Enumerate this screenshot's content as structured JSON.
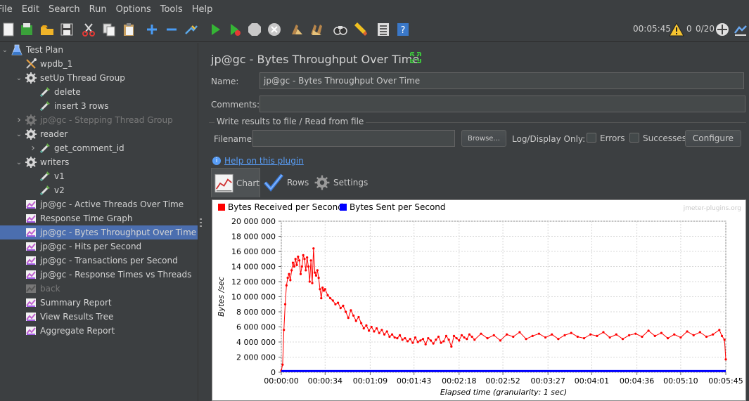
{
  "menu": {
    "items": [
      {
        "label": "File"
      },
      {
        "label": "Edit"
      },
      {
        "label": "Search"
      },
      {
        "label": "Run"
      },
      {
        "label": "Options"
      },
      {
        "label": "Tools"
      },
      {
        "label": "Help"
      }
    ]
  },
  "toolbar": {
    "icons": [
      "new-icon",
      "templates-icon",
      "open-icon",
      "save-icon",
      "cut-icon",
      "copy-icon",
      "paste-icon",
      "expand-icon",
      "collapse-icon",
      "toggle-icon",
      "start-icon",
      "start-no-timers-icon",
      "stop-icon",
      "shutdown-icon",
      "clear-icon",
      "clear-all-icon",
      "search-icon",
      "reset-search-icon",
      "function-helper-icon",
      "help-icon"
    ],
    "elapsed": "00:05:45",
    "warnings": "0",
    "threads": "0/20"
  },
  "tree": {
    "items": [
      {
        "label": "Test Plan",
        "level": 0,
        "icon": "test-plan-icon",
        "expanded": true,
        "dim": false
      },
      {
        "label": "wpdb_1",
        "level": 1,
        "icon": "config-icon",
        "expanded": null,
        "dim": false
      },
      {
        "label": "setUp Thread Group",
        "level": 1,
        "icon": "thread-group-icon",
        "expanded": true,
        "dim": false
      },
      {
        "label": "delete",
        "level": 2,
        "icon": "sampler-icon",
        "expanded": null,
        "dim": false
      },
      {
        "label": "insert 3 rows",
        "level": 2,
        "icon": "sampler-icon",
        "expanded": null,
        "dim": false
      },
      {
        "label": "jp@gc - Stepping Thread Group",
        "level": 1,
        "icon": "thread-group-icon",
        "expanded": false,
        "dim": true
      },
      {
        "label": "reader",
        "level": 1,
        "icon": "thread-group-icon",
        "expanded": true,
        "dim": false
      },
      {
        "label": "get_comment_id",
        "level": 2,
        "icon": "sampler-icon",
        "expanded": false,
        "dim": false
      },
      {
        "label": "writers",
        "level": 1,
        "icon": "thread-group-icon",
        "expanded": true,
        "dim": false
      },
      {
        "label": "v1",
        "level": 2,
        "icon": "sampler-icon",
        "expanded": null,
        "dim": false
      },
      {
        "label": "v2",
        "level": 2,
        "icon": "sampler-icon",
        "expanded": null,
        "dim": false
      },
      {
        "label": "jp@gc - Active Threads Over Time",
        "level": 1,
        "icon": "listener-icon",
        "expanded": null,
        "dim": false
      },
      {
        "label": "Response Time Graph",
        "level": 1,
        "icon": "listener-icon",
        "expanded": null,
        "dim": false
      },
      {
        "label": "jp@gc - Bytes Throughput Over Time",
        "level": 1,
        "icon": "listener-icon",
        "expanded": null,
        "dim": false,
        "selected": true
      },
      {
        "label": "jp@gc - Hits per Second",
        "level": 1,
        "icon": "listener-icon",
        "expanded": null,
        "dim": false
      },
      {
        "label": "jp@gc - Transactions per Second",
        "level": 1,
        "icon": "listener-icon",
        "expanded": null,
        "dim": false
      },
      {
        "label": "jp@gc - Response Times vs Threads",
        "level": 1,
        "icon": "listener-icon",
        "expanded": null,
        "dim": false
      },
      {
        "label": "back",
        "level": 1,
        "icon": "listener-icon",
        "expanded": null,
        "dim": true
      },
      {
        "label": "Summary Report",
        "level": 1,
        "icon": "listener-icon",
        "expanded": null,
        "dim": false
      },
      {
        "label": "View Results Tree",
        "level": 1,
        "icon": "listener-icon",
        "expanded": null,
        "dim": false
      },
      {
        "label": "Aggregate Report",
        "level": 1,
        "icon": "listener-icon",
        "expanded": null,
        "dim": false
      }
    ]
  },
  "panel": {
    "title": "jp@gc - Bytes Throughput Over Time",
    "name_label": "Name:",
    "name_value": "jp@gc - Bytes Throughput Over Time",
    "comments_label": "Comments:",
    "comments_value": "",
    "group_title": "Write results to file / Read from file",
    "filename_label": "Filename",
    "filename_value": "",
    "browse_label": "Browse...",
    "log_display_label": "Log/Display Only:",
    "errors_label": "Errors",
    "successes_label": "Successes",
    "configure_label": "Configure",
    "help_link": "Help on this plugin",
    "tabs": [
      {
        "label": "Chart",
        "icon": "chart-icon",
        "active": true
      },
      {
        "label": "Rows",
        "icon": "rows-icon",
        "active": false
      },
      {
        "label": "Settings",
        "icon": "settings-icon",
        "active": false
      }
    ]
  },
  "chart_data": {
    "type": "line",
    "title": "",
    "watermark": "jmeter-plugins.org",
    "xlabel": "Elapsed time (granularity: 1 sec)",
    "ylabel": "Bytes /sec",
    "xlim": [
      0,
      345
    ],
    "ylim": [
      0,
      20000000
    ],
    "grid": true,
    "legend": "top-left",
    "x_ticks": [
      0,
      34,
      69,
      103,
      138,
      172,
      207,
      241,
      276,
      310,
      345
    ],
    "x_tick_labels": [
      "00:00:00",
      "00:00:34",
      "00:01:09",
      "00:01:43",
      "00:02:18",
      "00:02:52",
      "00:03:27",
      "00:04:01",
      "00:04:36",
      "00:05:10",
      "00:05:45"
    ],
    "y_ticks": [
      0,
      2000000,
      4000000,
      6000000,
      8000000,
      10000000,
      12000000,
      14000000,
      16000000,
      18000000,
      20000000
    ],
    "y_tick_labels": [
      "0",
      "2 000 000",
      "4 000 000",
      "6 000 000",
      "8 000 000",
      "10 000 000",
      "12 000 000",
      "14 000 000",
      "16 000 000",
      "18 000 000",
      "20 000 000"
    ],
    "series": [
      {
        "name": "Bytes Received per Second",
        "color": "#ff0000",
        "x": [
          0,
          1,
          2,
          3,
          4,
          5,
          6,
          7,
          8,
          9,
          10,
          11,
          12,
          13,
          14,
          15,
          16,
          17,
          18,
          19,
          20,
          21,
          22,
          23,
          24,
          25,
          26,
          27,
          28,
          29,
          30,
          31,
          32,
          33,
          34,
          36,
          38,
          40,
          42,
          44,
          46,
          48,
          50,
          52,
          54,
          56,
          58,
          60,
          62,
          64,
          66,
          68,
          70,
          72,
          74,
          76,
          78,
          80,
          82,
          84,
          86,
          88,
          90,
          92,
          94,
          96,
          98,
          100,
          102,
          104,
          106,
          108,
          110,
          112,
          114,
          116,
          118,
          120,
          122,
          124,
          126,
          128,
          130,
          132,
          134,
          136,
          138,
          140,
          142,
          144,
          146,
          148,
          150,
          155,
          160,
          165,
          170,
          175,
          180,
          185,
          190,
          195,
          200,
          205,
          210,
          215,
          220,
          225,
          230,
          235,
          240,
          245,
          250,
          255,
          260,
          265,
          270,
          275,
          280,
          285,
          290,
          295,
          300,
          305,
          310,
          315,
          320,
          325,
          330,
          335,
          340,
          342,
          344,
          345
        ],
        "values": [
          200000,
          1000000,
          5600000,
          9000000,
          11500000,
          12500000,
          13000000,
          12200000,
          13500000,
          14500000,
          14000000,
          15000000,
          14200000,
          15300000,
          14800000,
          13000000,
          14000000,
          15500000,
          15000000,
          13500000,
          15200000,
          14000000,
          12000000,
          14800000,
          11800000,
          16400000,
          13200000,
          12800000,
          13500000,
          12500000,
          11000000,
          9800000,
          11200000,
          10800000,
          11000000,
          10200000,
          9800000,
          9500000,
          9000000,
          9200000,
          8500000,
          8800000,
          8000000,
          7200000,
          8200000,
          7500000,
          6800000,
          7300000,
          6500000,
          5800000,
          6200000,
          5500000,
          6000000,
          5400000,
          5800000,
          5200000,
          5600000,
          5000000,
          5400000,
          4700000,
          5000000,
          4600000,
          4500000,
          4900000,
          4300000,
          4500000,
          4100000,
          4400000,
          3900000,
          4600000,
          4000000,
          4200000,
          4400000,
          3700000,
          4500000,
          4200000,
          3800000,
          4300000,
          4700000,
          3900000,
          4100000,
          4800000,
          4300000,
          3400000,
          4800000,
          4500000,
          4200000,
          4900000,
          4600000,
          4400000,
          5000000,
          4700000,
          4300000,
          5100000,
          4500000,
          4900000,
          4200000,
          5000000,
          4700000,
          5300000,
          4400000,
          4800000,
          5100000,
          4600000,
          5000000,
          4400000,
          4900000,
          5200000,
          4700000,
          4500000,
          5000000,
          4800000,
          5300000,
          4600000,
          5000000,
          4400000,
          4900000,
          5100000,
          4700000,
          5500000,
          4800000,
          5200000,
          4500000,
          5000000,
          4600000,
          5400000,
          4900000,
          5300000,
          4700000,
          5000000,
          5600000,
          4800000,
          4300000,
          1700000
        ]
      },
      {
        "name": "Bytes Sent per Second",
        "color": "#0000ff",
        "x": [
          0,
          345
        ],
        "values": [
          150000,
          150000
        ]
      }
    ]
  }
}
